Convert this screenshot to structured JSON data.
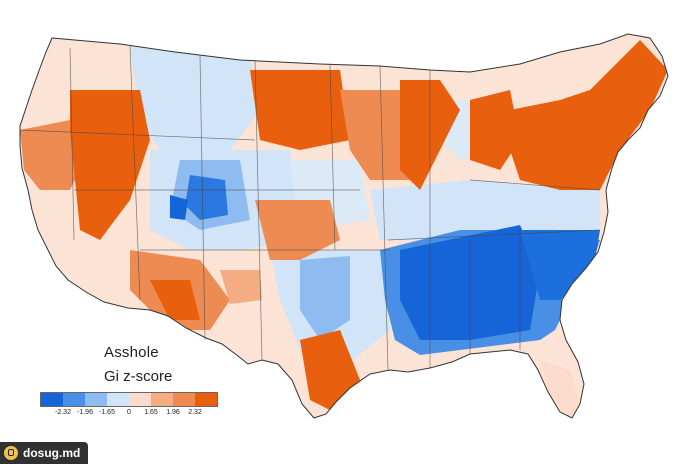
{
  "legend": {
    "title": "Asshole",
    "subtitle": "Gi z-score",
    "colors": [
      "#1565d8",
      "#4a8fe6",
      "#8fbcf0",
      "#d2e5f8",
      "#fbdccb",
      "#f4ad83",
      "#ee8b52",
      "#e8600e"
    ],
    "tick_labels": [
      "-2.32",
      "-1.96",
      "-1.65",
      "0",
      "1.65",
      "1.96",
      "2.32"
    ]
  },
  "watermark": {
    "text": "dosug.md",
    "logo": "padlock-logo"
  }
}
